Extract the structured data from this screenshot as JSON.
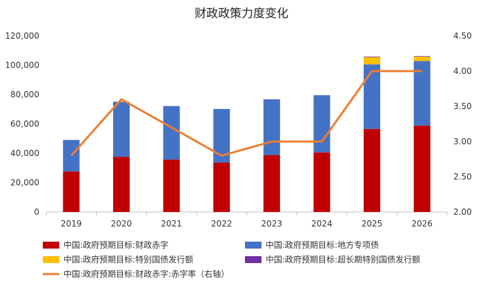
{
  "chart_data": {
    "type": "bar",
    "title": "财政政策力度变化",
    "categories": [
      "2019",
      "2020",
      "2021",
      "2022",
      "2023",
      "2024",
      "2025",
      "2026"
    ],
    "stacked": true,
    "series": [
      {
        "name": "中国:政府预期目标:财政赤字",
        "color": "#C00000",
        "axis": "left",
        "values": [
          27600,
          37600,
          35700,
          33700,
          38800,
          40600,
          56600,
          58900
        ]
      },
      {
        "name": "中国:政府预期目标:地方专项债",
        "color": "#4472C4",
        "axis": "left",
        "values": [
          21500,
          37500,
          36500,
          36500,
          38000,
          39000,
          44000,
          44000
        ]
      },
      {
        "name": "中国:政府预期目标:特别国债发行额",
        "color": "#FFC000",
        "axis": "left",
        "values": [
          0,
          0,
          0,
          0,
          0,
          0,
          5000,
          3000
        ]
      },
      {
        "name": "中国:政府预期目标:超长期特别国债发行额",
        "color": "#7030A0",
        "axis": "left",
        "values": [
          0,
          0,
          0,
          0,
          0,
          0,
          300,
          300
        ]
      },
      {
        "name": "中国:政府预期目标:财政赤字:赤字率（右轴）",
        "type": "line",
        "color": "#ED7D31",
        "axis": "right",
        "values": [
          2.8,
          3.6,
          3.2,
          2.8,
          3.0,
          3.0,
          4.0,
          4.0
        ]
      }
    ],
    "left_axis": {
      "min": 0,
      "max": 120000,
      "step": 20000,
      "tick_labels": [
        "0",
        "20,000",
        "40,000",
        "60,000",
        "80,000",
        "100,000",
        "120,000"
      ]
    },
    "right_axis": {
      "min": 2.0,
      "max": 4.5,
      "step": 0.5,
      "tick_labels": [
        "2.00",
        "2.50",
        "3.00",
        "3.50",
        "4.00",
        "4.50"
      ]
    },
    "grid": false,
    "legend_position": "bottom"
  }
}
